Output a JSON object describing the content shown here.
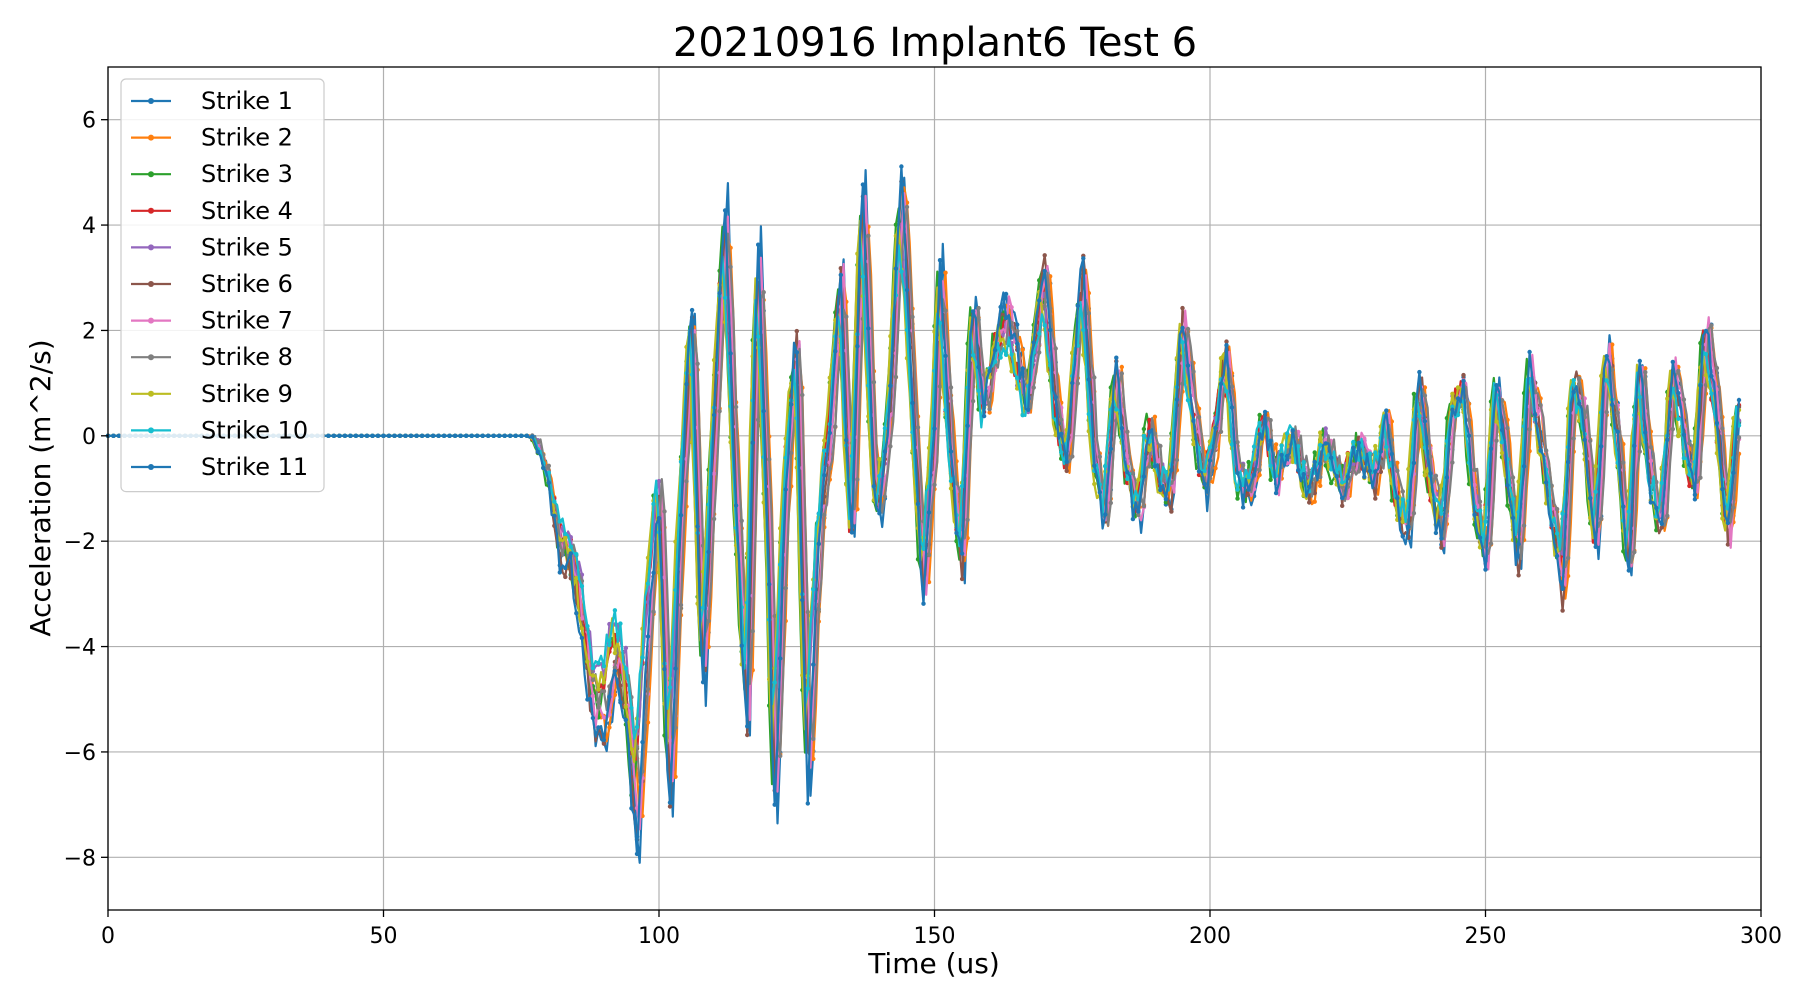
{
  "chart_data": {
    "type": "line",
    "title": "20210916 Implant6 Test 6",
    "xlabel": "Time (us)",
    "ylabel": "Acceleration (m^2/s)",
    "xlim": [
      0,
      300
    ],
    "ylim": [
      -9,
      7
    ],
    "xticks": [
      0,
      50,
      100,
      150,
      200,
      250,
      300
    ],
    "yticks": [
      6,
      4,
      2,
      0,
      -2,
      -4,
      -6,
      -8
    ],
    "ytick_labels": [
      "6",
      "4",
      "2",
      "0",
      "−2",
      "−4",
      "−6",
      "−8"
    ],
    "grid": true,
    "legend_position": "upper-left",
    "marker": "small-dot",
    "baseline": {
      "flat_until_us": 76,
      "value": 0,
      "end_us": 296
    },
    "series": [
      {
        "name": "Strike 1",
        "color": "#1f77b4"
      },
      {
        "name": "Strike 2",
        "color": "#ff7f0e"
      },
      {
        "name": "Strike 3",
        "color": "#2ca02c"
      },
      {
        "name": "Strike 4",
        "color": "#d62728"
      },
      {
        "name": "Strike 5",
        "color": "#9467bd"
      },
      {
        "name": "Strike 6",
        "color": "#8c564b"
      },
      {
        "name": "Strike 7",
        "color": "#e377c2"
      },
      {
        "name": "Strike 8",
        "color": "#7f7f7f"
      },
      {
        "name": "Strike 9",
        "color": "#bcbd22"
      },
      {
        "name": "Strike 10",
        "color": "#17becf"
      },
      {
        "name": "Strike 11",
        "color": "#1f77b4"
      }
    ],
    "envelope_points": [
      [
        76,
        0
      ],
      [
        78,
        -0.5
      ],
      [
        80,
        -1.3
      ],
      [
        82,
        -2.0
      ],
      [
        84,
        -2.1
      ],
      [
        86,
        -3.2
      ],
      [
        88,
        -4.8
      ],
      [
        90,
        -5.0
      ],
      [
        92,
        -3.8
      ],
      [
        94,
        -4.6
      ],
      [
        96,
        -6.8
      ],
      [
        98,
        -3.5
      ],
      [
        100,
        -0.8
      ],
      [
        102,
        -6.3
      ],
      [
        104,
        -1.5
      ],
      [
        106,
        2.3
      ],
      [
        108,
        -4.3
      ],
      [
        110,
        0.0
      ],
      [
        112,
        4.0
      ],
      [
        114,
        -1.0
      ],
      [
        116,
        -5.0
      ],
      [
        118,
        3.3
      ],
      [
        120,
        -2.0
      ],
      [
        121,
        -6.5
      ],
      [
        123,
        -1.0
      ],
      [
        125,
        1.8
      ],
      [
        127,
        -6.0
      ],
      [
        129,
        -2.0
      ],
      [
        131,
        0.0
      ],
      [
        133,
        2.9
      ],
      [
        135,
        -2.0
      ],
      [
        137,
        4.5
      ],
      [
        139,
        -0.5
      ],
      [
        140,
        -1.3
      ],
      [
        142,
        0.5
      ],
      [
        144,
        4.5
      ],
      [
        146,
        1.0
      ],
      [
        148,
        -2.7
      ],
      [
        150,
        0.0
      ],
      [
        151,
        3.0
      ],
      [
        153,
        -0.3
      ],
      [
        155,
        -2.3
      ],
      [
        157,
        2.4
      ],
      [
        159,
        0.3
      ],
      [
        161,
        1.6
      ],
      [
        163,
        2.2
      ],
      [
        165,
        1.4
      ],
      [
        167,
        0.5
      ],
      [
        170,
        3.0
      ],
      [
        172,
        0.5
      ],
      [
        174,
        -0.5
      ],
      [
        177,
        2.9
      ],
      [
        179,
        -0.3
      ],
      [
        181,
        -1.5
      ],
      [
        183,
        1.2
      ],
      [
        185,
        -0.6
      ],
      [
        187,
        -1.5
      ],
      [
        189,
        0.2
      ],
      [
        191,
        -0.8
      ],
      [
        193,
        -1.0
      ],
      [
        195,
        2.1
      ],
      [
        197,
        0.5
      ],
      [
        199,
        -1.0
      ],
      [
        201,
        0.0
      ],
      [
        203,
        1.5
      ],
      [
        205,
        -0.8
      ],
      [
        207,
        -1.0
      ],
      [
        210,
        0.3
      ],
      [
        212,
        -0.8
      ],
      [
        215,
        0.0
      ],
      [
        218,
        -1.0
      ],
      [
        221,
        -0.1
      ],
      [
        224,
        -1.0
      ],
      [
        227,
        -0.2
      ],
      [
        230,
        -0.8
      ],
      [
        232,
        0.3
      ],
      [
        234,
        -1.2
      ],
      [
        236,
        -1.7
      ],
      [
        238,
        1.0
      ],
      [
        240,
        -0.8
      ],
      [
        242,
        -1.8
      ],
      [
        244,
        0.5
      ],
      [
        246,
        0.8
      ],
      [
        248,
        -1.0
      ],
      [
        250,
        -2.2
      ],
      [
        252,
        1.0
      ],
      [
        254,
        -0.5
      ],
      [
        256,
        -2.2
      ],
      [
        258,
        1.2
      ],
      [
        260,
        0.0
      ],
      [
        262,
        -1.3
      ],
      [
        264,
        -2.7
      ],
      [
        266,
        1.0
      ],
      [
        268,
        0.3
      ],
      [
        270,
        -2.0
      ],
      [
        272,
        1.5
      ],
      [
        274,
        0.1
      ],
      [
        276,
        -2.5
      ],
      [
        278,
        1.3
      ],
      [
        280,
        -0.8
      ],
      [
        282,
        -1.7
      ],
      [
        284,
        1.2
      ],
      [
        286,
        0.0
      ],
      [
        288,
        -1.0
      ],
      [
        290,
        2.0
      ],
      [
        292,
        0.5
      ],
      [
        294,
        -1.8
      ],
      [
        296,
        0.5
      ]
    ]
  }
}
